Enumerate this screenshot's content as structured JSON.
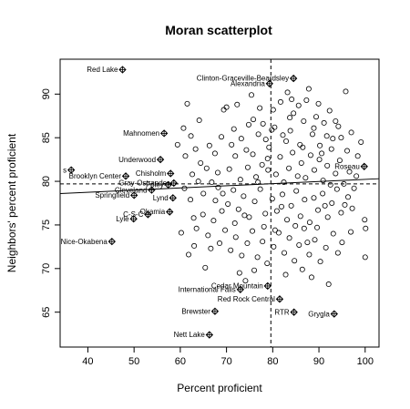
{
  "chart_data": {
    "type": "scatter",
    "title": "Moran scatterplot",
    "xlabel": "Percent proficient",
    "ylabel": "Neighbors' percent proficient",
    "xlim": [
      34,
      103
    ],
    "ylim": [
      61,
      94
    ],
    "xticks": [
      40,
      50,
      60,
      70,
      80,
      90,
      100
    ],
    "yticks": [
      65,
      70,
      75,
      80,
      85,
      90
    ],
    "mean_x": 79.6,
    "mean_y": 79.7,
    "regression_line": {
      "x": [
        34,
        103
      ],
      "y": [
        78.6,
        80.3
      ]
    },
    "grid": false,
    "influential_points": [
      {
        "label": "Red Lake",
        "x": 47.5,
        "y": 92.8
      },
      {
        "label": "Clinton-Graceville-Beardsley",
        "x": 84.5,
        "y": 91.8
      },
      {
        "label": "Alexandria",
        "x": 79.3,
        "y": 91.2
      },
      {
        "label": "Mahnomen",
        "x": 56.5,
        "y": 85.5
      },
      {
        "label": "Underwood",
        "x": 55.7,
        "y": 82.5
      },
      {
        "label": "Chisholm",
        "x": 57.9,
        "y": 80.9
      },
      {
        "label": "Brooklyn Center",
        "x": 48.2,
        "y": 80.6
      },
      {
        "label": "Foley",
        "x": 57.4,
        "y": 79.6
      },
      {
        "label": "Gray-Ostrander",
        "x": 58.6,
        "y": 79.8
      },
      {
        "label": "Cleveland",
        "x": 53.8,
        "y": 79.0
      },
      {
        "label": "Springfield",
        "x": 50.0,
        "y": 78.4
      },
      {
        "label": "Lynd",
        "x": 58.4,
        "y": 78.1
      },
      {
        "label": "C-S-C",
        "x": 53.0,
        "y": 76.2
      },
      {
        "label": "Okamia",
        "x": 57.7,
        "y": 76.5
      },
      {
        "label": "Lyle",
        "x": 49.9,
        "y": 75.7
      },
      {
        "label": "Nice-Okabena",
        "x": 45.2,
        "y": 73.1
      },
      {
        "label": "s",
        "x": 36.4,
        "y": 81.3
      },
      {
        "label": "Roseau",
        "x": 99.8,
        "y": 81.7
      },
      {
        "label": "Cedar Mountain",
        "x": 78.9,
        "y": 68.0
      },
      {
        "label": "International Falls",
        "x": 73.0,
        "y": 67.6
      },
      {
        "label": "Red Rock Central",
        "x": 81.5,
        "y": 66.5
      },
      {
        "label": "Brewster",
        "x": 67.5,
        "y": 65.1
      },
      {
        "label": "RTR",
        "x": 84.6,
        "y": 65.0
      },
      {
        "label": "Grygla",
        "x": 93.3,
        "y": 64.8
      },
      {
        "label": "Nett Lake",
        "x": 66.3,
        "y": 62.4
      }
    ],
    "points": [
      [
        67.5,
        83.2
      ],
      [
        68.9,
        85.1
      ],
      [
        69.4,
        88.2
      ],
      [
        62.3,
        85.2
      ],
      [
        64.1,
        87.0
      ],
      [
        61.5,
        88.9
      ],
      [
        71.6,
        86.0
      ],
      [
        73.2,
        84.9
      ],
      [
        74.3,
        83.6
      ],
      [
        75.8,
        87.1
      ],
      [
        76.9,
        85.4
      ],
      [
        77.2,
        88.4
      ],
      [
        78.5,
        84.8
      ],
      [
        80.4,
        86.2
      ],
      [
        81.7,
        89.1
      ],
      [
        82.9,
        84.6
      ],
      [
        83.8,
        85.8
      ],
      [
        84.5,
        87.8
      ],
      [
        85.9,
        84.2
      ],
      [
        86.7,
        86.9
      ],
      [
        87.3,
        89.3
      ],
      [
        88.6,
        85.4
      ],
      [
        89.4,
        87.4
      ],
      [
        90.2,
        84.1
      ],
      [
        91.1,
        86.7
      ],
      [
        92.3,
        88.1
      ],
      [
        93.0,
        84.9
      ],
      [
        94.2,
        86.3
      ],
      [
        95.8,
        90.3
      ],
      [
        96.1,
        83.5
      ],
      [
        97.0,
        85.6
      ],
      [
        83.2,
        90.2
      ],
      [
        87.8,
        90.6
      ],
      [
        75.4,
        89.9
      ],
      [
        70.6,
        81.4
      ],
      [
        71.9,
        82.9
      ],
      [
        73.0,
        80.2
      ],
      [
        74.6,
        81.6
      ],
      [
        75.7,
        83.1
      ],
      [
        76.8,
        79.9
      ],
      [
        77.7,
        81.9
      ],
      [
        78.9,
        82.6
      ],
      [
        80.7,
        80.8
      ],
      [
        81.6,
        82.8
      ],
      [
        82.4,
        79.9
      ],
      [
        83.5,
        81.5
      ],
      [
        84.3,
        83.3
      ],
      [
        85.4,
        80.6
      ],
      [
        86.2,
        82.1
      ],
      [
        87.1,
        80.4
      ],
      [
        88.2,
        83.0
      ],
      [
        89.0,
        81.3
      ],
      [
        90.1,
        82.5
      ],
      [
        90.9,
        80.1
      ],
      [
        91.8,
        81.8
      ],
      [
        92.7,
        83.7
      ],
      [
        93.6,
        80.9
      ],
      [
        94.5,
        82.4
      ],
      [
        95.4,
        79.7
      ],
      [
        96.6,
        81.1
      ],
      [
        98.1,
        80.6
      ],
      [
        62.6,
        80.8
      ],
      [
        64.4,
        82.1
      ],
      [
        65.7,
        81.5
      ],
      [
        66.8,
        79.9
      ],
      [
        68.1,
        81.0
      ],
      [
        69.2,
        78.6
      ],
      [
        70.3,
        77.4
      ],
      [
        71.5,
        79.0
      ],
      [
        72.6,
        76.8
      ],
      [
        73.7,
        78.3
      ],
      [
        74.9,
        75.9
      ],
      [
        76.1,
        77.7
      ],
      [
        77.3,
        79.1
      ],
      [
        78.4,
        76.3
      ],
      [
        79.9,
        78.0
      ],
      [
        80.9,
        76.6
      ],
      [
        82.1,
        78.5
      ],
      [
        83.1,
        75.6
      ],
      [
        84.0,
        77.2
      ],
      [
        85.1,
        78.9
      ],
      [
        86.0,
        76.0
      ],
      [
        86.9,
        77.9
      ],
      [
        88.0,
        75.3
      ],
      [
        88.9,
        78.1
      ],
      [
        89.8,
        76.7
      ],
      [
        90.8,
        78.6
      ],
      [
        91.9,
        75.9
      ],
      [
        92.8,
        77.5
      ],
      [
        93.9,
        79.1
      ],
      [
        94.8,
        76.4
      ],
      [
        96.3,
        78.2
      ],
      [
        97.2,
        76.9
      ],
      [
        99.9,
        75.6
      ],
      [
        62.2,
        77.9
      ],
      [
        63.5,
        74.6
      ],
      [
        64.9,
        76.2
      ],
      [
        66.0,
        73.8
      ],
      [
        67.2,
        75.5
      ],
      [
        68.5,
        72.9
      ],
      [
        69.7,
        74.4
      ],
      [
        70.9,
        72.1
      ],
      [
        72.0,
        73.6
      ],
      [
        73.3,
        71.5
      ],
      [
        74.5,
        72.9
      ],
      [
        75.6,
        74.3
      ],
      [
        76.7,
        71.3
      ],
      [
        77.8,
        73.1
      ],
      [
        78.8,
        70.6
      ],
      [
        80.2,
        72.5
      ],
      [
        81.3,
        74.1
      ],
      [
        82.5,
        71.8
      ],
      [
        83.6,
        73.5
      ],
      [
        84.7,
        70.9
      ],
      [
        85.7,
        72.7
      ],
      [
        86.8,
        74.6
      ],
      [
        87.9,
        71.6
      ],
      [
        89.1,
        73.3
      ],
      [
        90.3,
        70.8
      ],
      [
        91.5,
        72.4
      ],
      [
        93.1,
        74.0
      ],
      [
        95.0,
        73.0
      ],
      [
        100.0,
        71.3
      ],
      [
        65.4,
        70.1
      ],
      [
        61.8,
        71.6
      ],
      [
        63.0,
        72.6
      ],
      [
        72.8,
        69.5
      ],
      [
        74.1,
        68.6
      ],
      [
        76.0,
        69.8
      ],
      [
        82.8,
        69.3
      ],
      [
        86.4,
        69.9
      ],
      [
        88.4,
        69.0
      ],
      [
        92.1,
        68.2
      ],
      [
        70.0,
        88.5
      ],
      [
        66.3,
        84.1
      ],
      [
        63.3,
        83.7
      ],
      [
        60.7,
        86.1
      ],
      [
        59.4,
        84.2
      ],
      [
        77.9,
        86.6
      ],
      [
        80.1,
        88.2
      ],
      [
        79.2,
        83.9
      ],
      [
        85.6,
        88.7
      ],
      [
        89.9,
        88.9
      ],
      [
        93.6,
        86.9
      ],
      [
        71.1,
        84.2
      ],
      [
        68.2,
        79.3
      ],
      [
        65.0,
        78.6
      ],
      [
        63.9,
        80.0
      ],
      [
        60.9,
        79.2
      ],
      [
        61.1,
        82.9
      ],
      [
        97.6,
        79.2
      ],
      [
        98.4,
        82.9
      ],
      [
        99.1,
        84.5
      ],
      [
        96.9,
        74.2
      ],
      [
        94.1,
        71.8
      ],
      [
        71.8,
        75.2
      ],
      [
        69.0,
        76.6
      ],
      [
        67.6,
        77.8
      ],
      [
        78.1,
        74.8
      ],
      [
        80.5,
        74.4
      ],
      [
        81.9,
        77.1
      ],
      [
        84.9,
        74.9
      ],
      [
        87.5,
        73.0
      ],
      [
        89.6,
        74.7
      ],
      [
        91.3,
        77.2
      ],
      [
        92.5,
        79.6
      ],
      [
        95.6,
        77.3
      ],
      [
        100.1,
        74.6
      ],
      [
        60.2,
        74.1
      ],
      [
        62.9,
        75.8
      ],
      [
        66.6,
        72.3
      ],
      [
        73.9,
        76.1
      ],
      [
        76.4,
        80.5
      ],
      [
        79.0,
        81.3
      ],
      [
        82.2,
        85.3
      ],
      [
        84.1,
        89.4
      ],
      [
        88.9,
        86.1
      ],
      [
        91.7,
        85.2
      ],
      [
        74.8,
        86.5
      ],
      [
        72.3,
        88.8
      ],
      [
        79.8,
        85.9
      ],
      [
        83.7,
        87.3
      ],
      [
        86.5,
        83.9
      ],
      [
        90.6,
        83.2
      ],
      [
        94.8,
        85.0
      ]
    ]
  }
}
